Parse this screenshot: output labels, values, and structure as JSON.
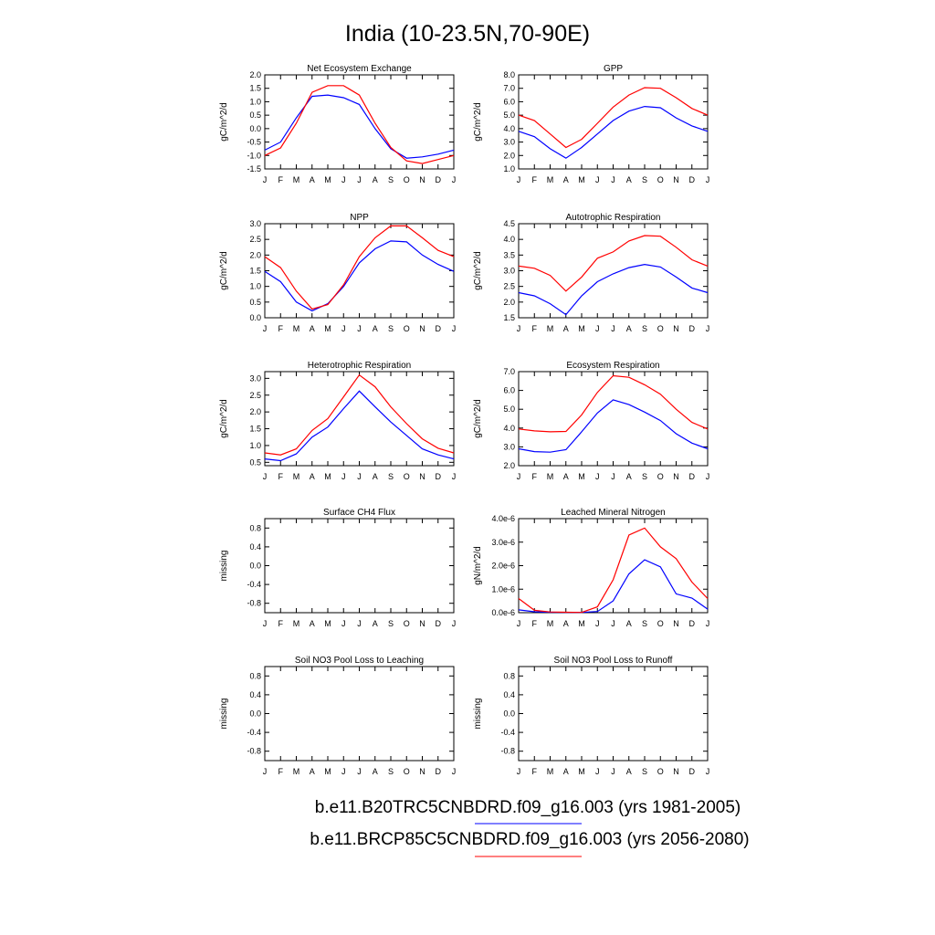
{
  "figure": {
    "title": "India (10-23.5N,70-90E)",
    "legend": [
      {
        "label": "b.e11.B20TRC5CNBDRD.f09_g16.003 (yrs 1981-2005)",
        "color": "#0000ff"
      },
      {
        "label": "b.e11.BRCP85C5CNBDRD.f09_g16.003 (yrs 2056-2080)",
        "color": "#ff0000"
      }
    ]
  },
  "colors": {
    "series_1": "#0000ff",
    "series_2": "#ff0000",
    "axes": "#000000"
  },
  "chart_data": [
    {
      "type": "line",
      "title": "Net Ecosystem Exchange",
      "ylabel": "gC/m^2/d",
      "categories": [
        "J",
        "F",
        "M",
        "A",
        "M",
        "J",
        "J",
        "A",
        "S",
        "O",
        "N",
        "D",
        "J"
      ],
      "ylim": [
        -1.5,
        2.0
      ],
      "yticks": [
        -1.5,
        -1.0,
        -0.5,
        0.0,
        0.5,
        1.0,
        1.5,
        2.0
      ],
      "ytick_labels": [
        "-1.5",
        "-1.0",
        "-0.5",
        "0.0",
        "0.5",
        "1.0",
        "1.5",
        "2.0"
      ],
      "series": [
        {
          "values": [
            -0.8,
            -0.5,
            0.4,
            1.2,
            1.25,
            1.15,
            0.9,
            0.0,
            -0.75,
            -1.1,
            -1.05,
            -0.95,
            -0.8
          ]
        },
        {
          "values": [
            -1.0,
            -0.72,
            0.2,
            1.35,
            1.6,
            1.6,
            1.25,
            0.2,
            -0.7,
            -1.2,
            -1.3,
            -1.15,
            -1.0
          ]
        }
      ]
    },
    {
      "type": "line",
      "title": "GPP",
      "ylabel": "gC/m^2/d",
      "categories": [
        "J",
        "F",
        "M",
        "A",
        "M",
        "J",
        "J",
        "A",
        "S",
        "O",
        "N",
        "D",
        "J"
      ],
      "ylim": [
        1.0,
        8.0
      ],
      "yticks": [
        1.0,
        2.0,
        3.0,
        4.0,
        5.0,
        6.0,
        7.0,
        8.0
      ],
      "ytick_labels": [
        "1.0",
        "2.0",
        "3.0",
        "4.0",
        "5.0",
        "6.0",
        "7.0",
        "8.0"
      ],
      "series": [
        {
          "values": [
            3.8,
            3.4,
            2.5,
            1.8,
            2.6,
            3.6,
            4.6,
            5.3,
            5.65,
            5.55,
            4.8,
            4.2,
            3.8
          ]
        },
        {
          "values": [
            5.0,
            4.6,
            3.6,
            2.6,
            3.2,
            4.4,
            5.6,
            6.5,
            7.05,
            7.0,
            6.3,
            5.5,
            5.0
          ]
        }
      ]
    },
    {
      "type": "line",
      "title": "NPP",
      "ylabel": "gC/m^2/d",
      "categories": [
        "J",
        "F",
        "M",
        "A",
        "M",
        "J",
        "J",
        "A",
        "S",
        "O",
        "N",
        "D",
        "J"
      ],
      "ylim": [
        0.0,
        3.0
      ],
      "yticks": [
        0.0,
        0.5,
        1.0,
        1.5,
        2.0,
        2.5,
        3.0
      ],
      "ytick_labels": [
        "0.0",
        "0.5",
        "1.0",
        "1.5",
        "2.0",
        "2.5",
        "3.0"
      ],
      "series": [
        {
          "values": [
            1.48,
            1.15,
            0.5,
            0.22,
            0.45,
            1.0,
            1.75,
            2.2,
            2.45,
            2.42,
            2.0,
            1.7,
            1.48
          ]
        },
        {
          "values": [
            1.95,
            1.6,
            0.85,
            0.28,
            0.42,
            1.05,
            1.95,
            2.55,
            2.93,
            2.93,
            2.55,
            2.15,
            1.95
          ]
        }
      ]
    },
    {
      "type": "line",
      "title": "Autotrophic Respiration",
      "ylabel": "gC/m^2/d",
      "categories": [
        "J",
        "F",
        "M",
        "A",
        "M",
        "J",
        "J",
        "A",
        "S",
        "O",
        "N",
        "D",
        "J"
      ],
      "ylim": [
        1.5,
        4.5
      ],
      "yticks": [
        1.5,
        2.0,
        2.5,
        3.0,
        3.5,
        4.0,
        4.5
      ],
      "ytick_labels": [
        "1.5",
        "2.0",
        "2.5",
        "3.0",
        "3.5",
        "4.0",
        "4.5"
      ],
      "series": [
        {
          "values": [
            2.3,
            2.2,
            1.95,
            1.6,
            2.2,
            2.65,
            2.9,
            3.1,
            3.2,
            3.12,
            2.8,
            2.45,
            2.3
          ]
        },
        {
          "values": [
            3.15,
            3.08,
            2.85,
            2.35,
            2.8,
            3.4,
            3.6,
            3.95,
            4.12,
            4.1,
            3.75,
            3.35,
            3.15
          ]
        }
      ]
    },
    {
      "type": "line",
      "title": "Heterotrophic Respiration",
      "ylabel": "gC/m^2/d",
      "categories": [
        "J",
        "F",
        "M",
        "A",
        "M",
        "J",
        "J",
        "A",
        "S",
        "O",
        "N",
        "D",
        "J"
      ],
      "ylim": [
        0.4,
        3.2
      ],
      "yticks": [
        0.5,
        1.0,
        1.5,
        2.0,
        2.5,
        3.0
      ],
      "ytick_labels": [
        "0.5",
        "1.0",
        "1.5",
        "2.0",
        "2.5",
        "3.0"
      ],
      "series": [
        {
          "values": [
            0.6,
            0.55,
            0.75,
            1.25,
            1.55,
            2.1,
            2.62,
            2.15,
            1.7,
            1.3,
            0.9,
            0.72,
            0.6
          ]
        },
        {
          "values": [
            0.78,
            0.72,
            0.9,
            1.45,
            1.8,
            2.45,
            3.1,
            2.75,
            2.15,
            1.65,
            1.2,
            0.92,
            0.78
          ]
        }
      ]
    },
    {
      "type": "line",
      "title": "Ecosystem Respiration",
      "ylabel": "gC/m^2/d",
      "categories": [
        "J",
        "F",
        "M",
        "A",
        "M",
        "J",
        "J",
        "A",
        "S",
        "O",
        "N",
        "D",
        "J"
      ],
      "ylim": [
        2.0,
        7.0
      ],
      "yticks": [
        2.0,
        3.0,
        4.0,
        5.0,
        6.0,
        7.0
      ],
      "ytick_labels": [
        "2.0",
        "3.0",
        "4.0",
        "5.0",
        "6.0",
        "7.0"
      ],
      "series": [
        {
          "values": [
            2.9,
            2.75,
            2.72,
            2.85,
            3.8,
            4.8,
            5.5,
            5.25,
            4.85,
            4.4,
            3.7,
            3.2,
            2.9
          ]
        },
        {
          "values": [
            3.95,
            3.85,
            3.8,
            3.82,
            4.7,
            5.9,
            6.78,
            6.7,
            6.3,
            5.8,
            5.0,
            4.3,
            3.95
          ]
        }
      ]
    },
    {
      "type": "line",
      "title": "Surface CH4 Flux",
      "ylabel": "missing",
      "categories": [
        "J",
        "F",
        "M",
        "A",
        "M",
        "J",
        "J",
        "A",
        "S",
        "O",
        "N",
        "D",
        "J"
      ],
      "ylim": [
        -1.0,
        1.0
      ],
      "yticks": [
        -0.8,
        -0.4,
        0.0,
        0.4,
        0.8
      ],
      "ytick_labels": [
        "-0.8",
        "-0.4",
        "0.0",
        "0.4",
        "0.8"
      ],
      "series": []
    },
    {
      "type": "line",
      "title": "Leached Mineral Nitrogen",
      "ylabel": "gN/m^2/d",
      "categories": [
        "J",
        "F",
        "M",
        "A",
        "M",
        "J",
        "J",
        "A",
        "S",
        "O",
        "N",
        "D",
        "J"
      ],
      "ylim": [
        0.0,
        4e-06
      ],
      "yticks": [
        0.0,
        1e-06,
        2e-06,
        3e-06,
        4e-06
      ],
      "ytick_labels": [
        "0.0e-6",
        "1.0e-6",
        "2.0e-6",
        "3.0e-6",
        "4.0e-6"
      ],
      "series": [
        {
          "values": [
            1.2e-07,
            4e-08,
            2e-08,
            1e-08,
            1e-08,
            5e-08,
            5e-07,
            1.65e-06,
            2.25e-06,
            1.95e-06,
            8e-07,
            6.2e-07,
            1.5e-07
          ]
        },
        {
          "values": [
            6e-07,
            1e-07,
            3e-08,
            2e-08,
            1e-08,
            2.5e-07,
            1.4e-06,
            3.3e-06,
            3.6e-06,
            2.8e-06,
            2.3e-06,
            1.3e-06,
            6e-07
          ]
        }
      ]
    },
    {
      "type": "line",
      "title": "Soil NO3 Pool Loss to Leaching",
      "ylabel": "missing",
      "categories": [
        "J",
        "F",
        "M",
        "A",
        "M",
        "J",
        "J",
        "A",
        "S",
        "O",
        "N",
        "D",
        "J"
      ],
      "ylim": [
        -1.0,
        1.0
      ],
      "yticks": [
        -0.8,
        -0.4,
        0.0,
        0.4,
        0.8
      ],
      "ytick_labels": [
        "-0.8",
        "-0.4",
        "0.0",
        "0.4",
        "0.8"
      ],
      "series": []
    },
    {
      "type": "line",
      "title": "Soil NO3 Pool Loss to Runoff",
      "ylabel": "missing",
      "categories": [
        "J",
        "F",
        "M",
        "A",
        "M",
        "J",
        "J",
        "A",
        "S",
        "O",
        "N",
        "D",
        "J"
      ],
      "ylim": [
        -1.0,
        1.0
      ],
      "yticks": [
        -0.8,
        -0.4,
        0.0,
        0.4,
        0.8
      ],
      "ytick_labels": [
        "-0.8",
        "-0.4",
        "0.0",
        "0.4",
        "0.8"
      ],
      "series": []
    }
  ]
}
